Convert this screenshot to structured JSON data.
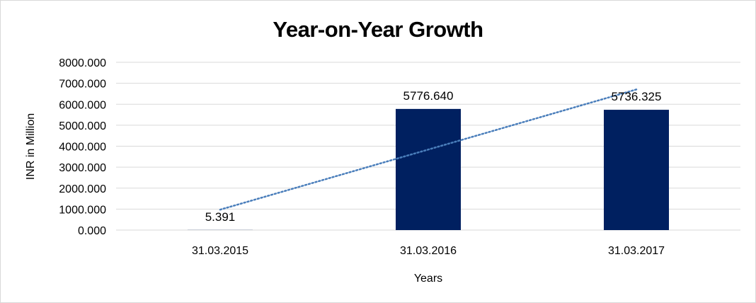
{
  "chart_data": {
    "type": "bar",
    "title": "Year-on-Year Growth",
    "xlabel": "Years",
    "ylabel": "INR in Million",
    "categories": [
      "31.03.2015",
      "31.03.2016",
      "31.03.2017"
    ],
    "series": [
      {
        "values": [
          5.391,
          5776.64,
          5736.325
        ],
        "data_labels": [
          "5.391",
          "5776.640",
          "5736.325"
        ],
        "color": "#002060"
      }
    ],
    "ylim": [
      0,
      8000
    ],
    "ytick_labels": [
      "0.000",
      "1000.000",
      "2000.000",
      "3000.000",
      "4000.000",
      "5000.000",
      "6000.000",
      "7000.000",
      "8000.000"
    ],
    "trendline": {
      "type": "linear",
      "style": "dotted",
      "color": "#4a7ebb"
    },
    "grid": true,
    "legend": "none"
  }
}
